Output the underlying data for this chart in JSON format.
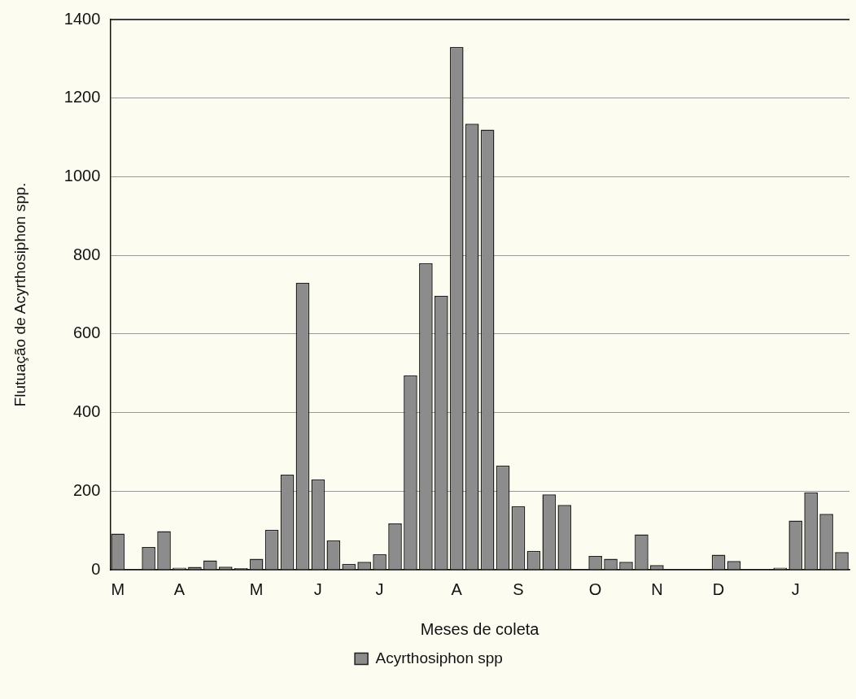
{
  "chart_data": {
    "type": "bar",
    "xlabel": "Meses de coleta",
    "ylabel": "Flutuação de Acyrthosiphon spp.",
    "categories": [
      "M",
      null,
      null,
      null,
      "A",
      null,
      null,
      null,
      null,
      "M",
      null,
      null,
      null,
      "J",
      null,
      null,
      null,
      "J",
      null,
      null,
      null,
      null,
      "A",
      null,
      null,
      null,
      "S",
      null,
      null,
      null,
      null,
      "O",
      null,
      null,
      null,
      "N",
      null,
      null,
      null,
      "D",
      null,
      null,
      null,
      null,
      "J",
      null,
      null,
      null
    ],
    "series": [
      {
        "name": "Acyrthosiphon spp",
        "color": "#8c8c8c",
        "values": [
          92,
          0,
          58,
          98,
          5,
          7,
          24,
          8,
          4,
          28,
          102,
          242,
          730,
          230,
          75,
          15,
          20,
          40,
          118,
          495,
          780,
          697,
          1330,
          1135,
          1120,
          265,
          162,
          48,
          192,
          165,
          0,
          35,
          28,
          20,
          90,
          12,
          0,
          0,
          0,
          38,
          22,
          0,
          0,
          5,
          125,
          197,
          142,
          45
        ]
      }
    ],
    "ylim": [
      0,
      1400
    ],
    "yticks": [
      0,
      200,
      400,
      600,
      800,
      1000,
      1200,
      1400
    ],
    "grid": "y",
    "legend": "bottom"
  }
}
